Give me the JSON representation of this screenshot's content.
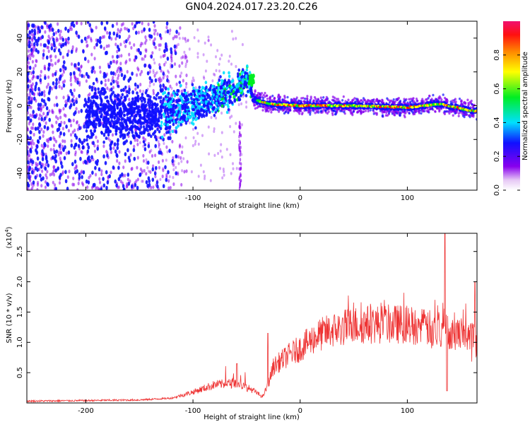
{
  "title": "GN04.2024.017.23.20.C26",
  "chart_data": [
    {
      "type": "heatmap",
      "xlabel": "Height of straight line (km)",
      "ylabel": "Frequency (Hz)",
      "xlim": [
        -255,
        165
      ],
      "ylim": [
        -50,
        50
      ],
      "x_ticks": [
        -200,
        -100,
        0,
        100
      ],
      "y_ticks": [
        -40,
        -20,
        0,
        20,
        40
      ],
      "ridge": [
        {
          "x": -130,
          "y": -5
        },
        {
          "x": -100,
          "y": 0
        },
        {
          "x": -80,
          "y": 5
        },
        {
          "x": -60,
          "y": 10
        },
        {
          "x": -48,
          "y": 16
        },
        {
          "x": -44,
          "y": 4
        },
        {
          "x": -30,
          "y": 1
        },
        {
          "x": 0,
          "y": 0
        },
        {
          "x": 50,
          "y": 0
        },
        {
          "x": 100,
          "y": -1
        },
        {
          "x": 130,
          "y": 1
        },
        {
          "x": 160,
          "y": -3
        }
      ],
      "colorbar": {
        "label": "Normalized spectral amplitude",
        "range": [
          0,
          1
        ],
        "ticks": [
          0.0,
          0.2,
          0.4,
          0.6,
          0.8
        ],
        "tick_labels": [
          "0.0",
          "0.2",
          "0.4",
          "0.6",
          "0.8"
        ],
        "colormap": "rainbow (white-violet-blue-cyan-green-yellow-orange-red-pink)"
      }
    },
    {
      "type": "line",
      "xlabel": "Height of straight line (km)",
      "ylabel": "SNR (10 * v/v)",
      "scale_label": "(x10",
      "scale_exp": "4",
      "scale_close": ")",
      "xlim": [
        -255,
        165
      ],
      "ylim": [
        0,
        2.8
      ],
      "x_ticks": [
        -200,
        -100,
        0,
        100
      ],
      "y_ticks": [
        0.5,
        1.0,
        1.5,
        2.0,
        2.5
      ],
      "y_tick_labels": [
        "0.5",
        "1.0",
        "1.5",
        "2.0",
        "2.5"
      ],
      "line_color": "#ee3333",
      "envelope": [
        {
          "x": -255,
          "y": 0.03
        },
        {
          "x": -200,
          "y": 0.04
        },
        {
          "x": -150,
          "y": 0.05
        },
        {
          "x": -120,
          "y": 0.08
        },
        {
          "x": -100,
          "y": 0.18
        },
        {
          "x": -80,
          "y": 0.3
        },
        {
          "x": -60,
          "y": 0.33
        },
        {
          "x": -45,
          "y": 0.22
        },
        {
          "x": -35,
          "y": 0.1
        },
        {
          "x": -30,
          "y": 0.3
        },
        {
          "x": -25,
          "y": 0.6
        },
        {
          "x": -10,
          "y": 0.8
        },
        {
          "x": 0,
          "y": 0.9
        },
        {
          "x": 15,
          "y": 1.1
        },
        {
          "x": 30,
          "y": 1.2
        },
        {
          "x": 50,
          "y": 1.28
        },
        {
          "x": 70,
          "y": 1.3
        },
        {
          "x": 100,
          "y": 1.3
        },
        {
          "x": 130,
          "y": 1.2
        },
        {
          "x": 165,
          "y": 1.1
        }
      ],
      "peaks": [
        {
          "x": -59,
          "y": 0.65
        },
        {
          "x": -30,
          "y": 1.15
        },
        {
          "x": 135,
          "y": 2.8
        },
        {
          "x": 137,
          "y": 0.2
        },
        {
          "x": 163,
          "y": 2.0
        }
      ]
    }
  ]
}
